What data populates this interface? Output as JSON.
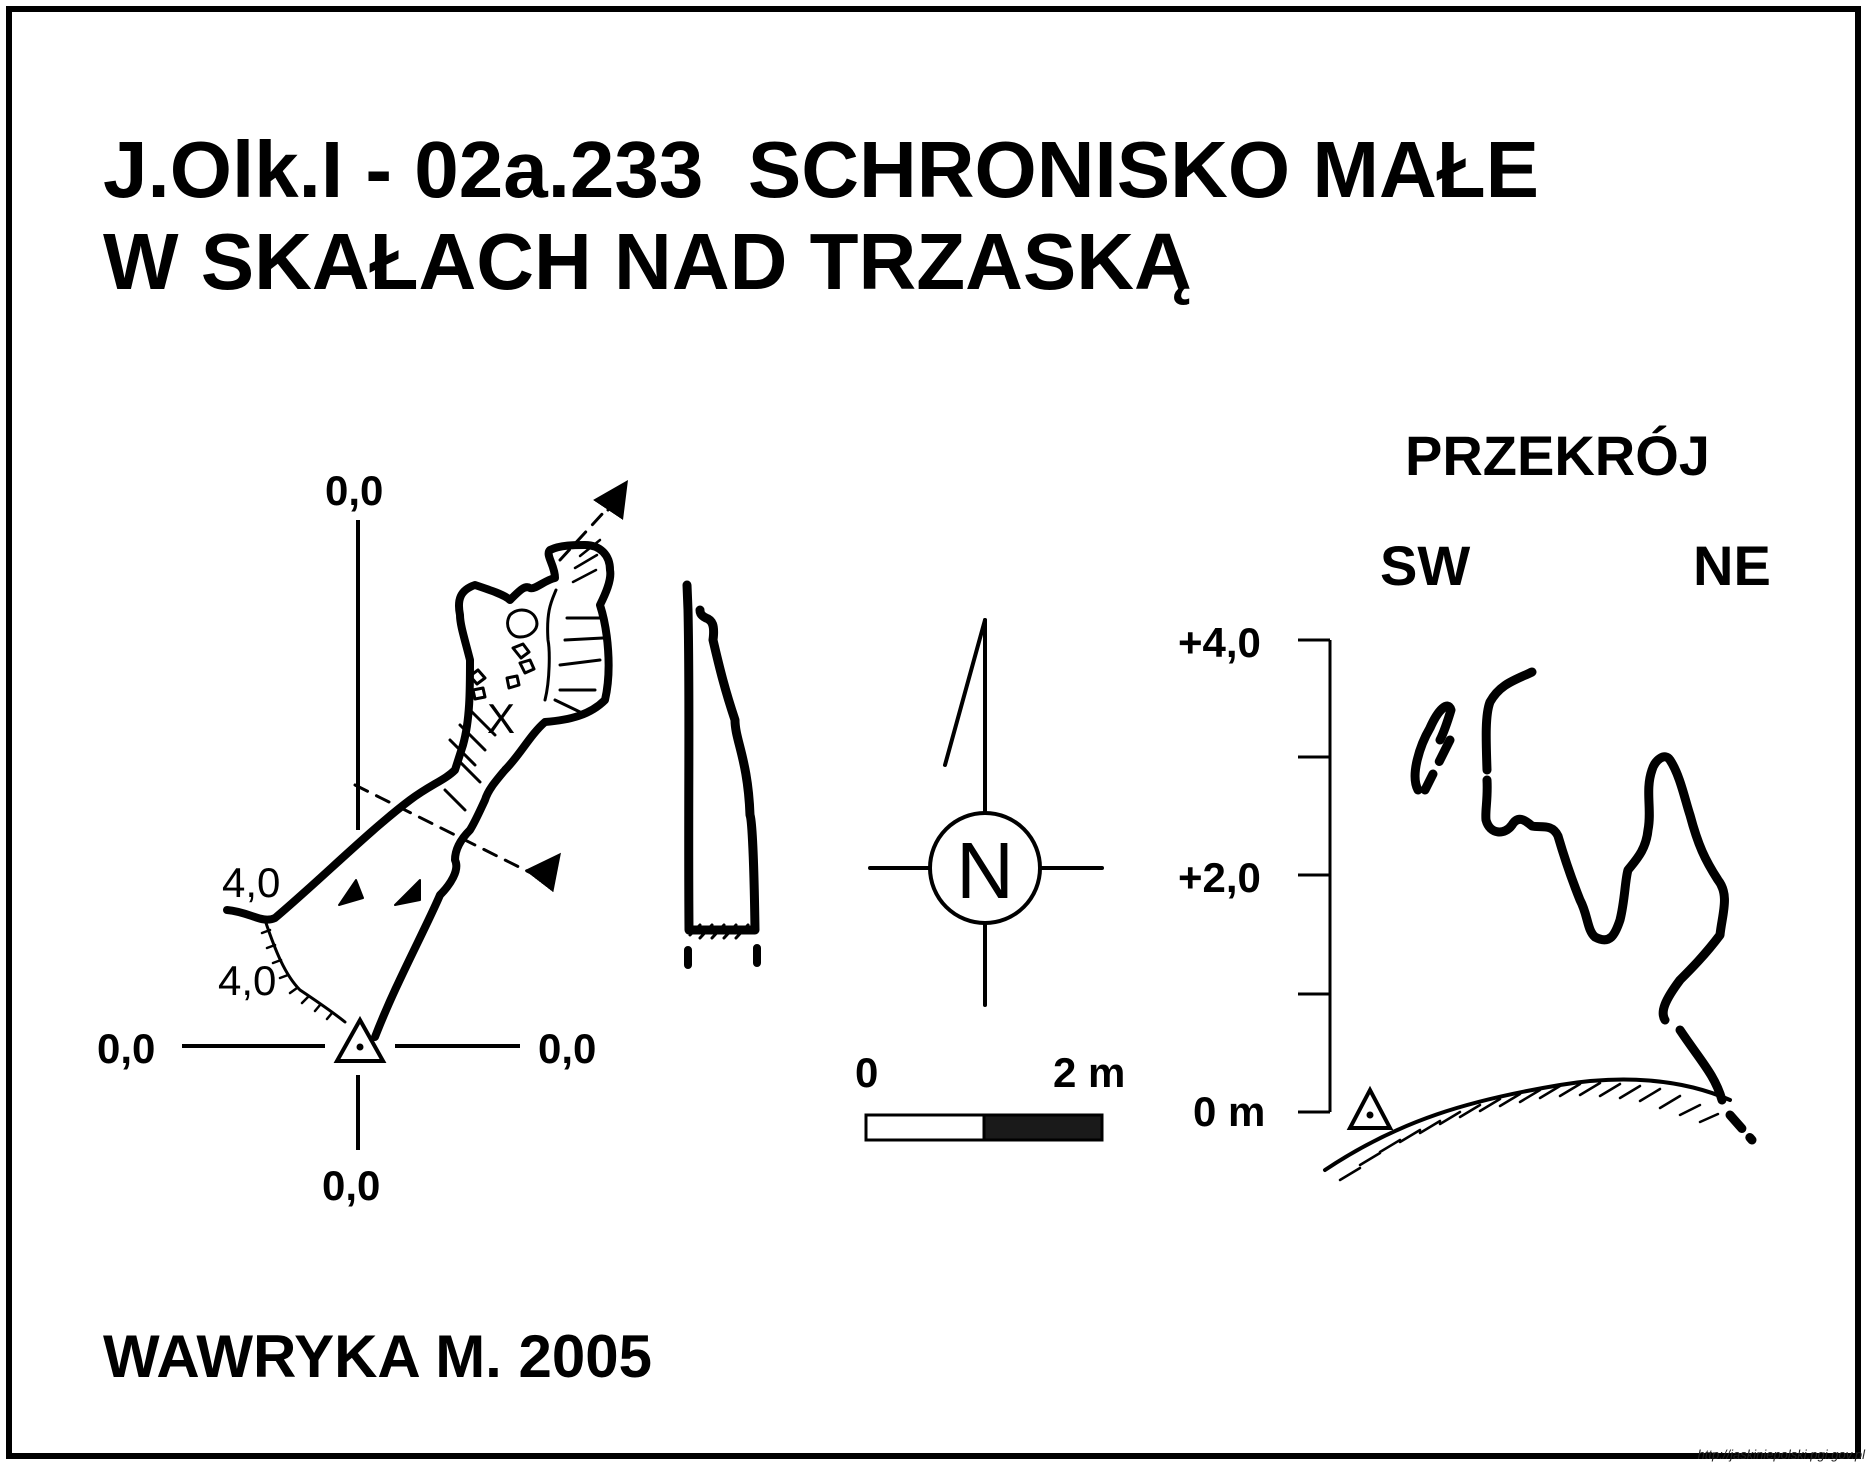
{
  "title": {
    "line1": "J.Olk.I - 02a.233  SCHRONISKO MAŁE",
    "line2": "W SKAŁACH NAD TRZASKĄ"
  },
  "plan": {
    "axis_top": "0,0",
    "axis_left": "0,0",
    "axis_right": "0,0",
    "axis_bottom": "0,0",
    "depth_upper": "4,0",
    "depth_lower": "4,0",
    "marker": "X"
  },
  "compass": {
    "letter": "N"
  },
  "scale_bar": {
    "start_label": "0",
    "end_label": "2 m"
  },
  "section": {
    "title": "PRZEKRÓJ",
    "dir_left": "SW",
    "dir_right": "NE",
    "ticks": [
      "+4,0",
      "+2,0",
      "0 m"
    ]
  },
  "author": "WAWRYKA M. 2005",
  "credit": "http://jaskiniepolski.pgi.gov.pl",
  "colors": {
    "ink": "#000000",
    "paper": "#ffffff"
  }
}
